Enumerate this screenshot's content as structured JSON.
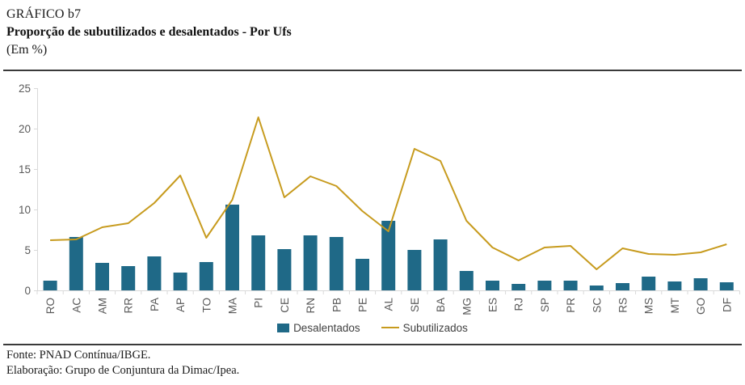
{
  "header": {
    "label": "GRÁFICO b7",
    "title": "Proporção de subutilizados e desalentados - Por Ufs",
    "unit": "(Em %)"
  },
  "colors": {
    "bar": "#1f6987",
    "line": "#c79b1e",
    "axis": "#d9d9d9",
    "tick_label": "#595959",
    "rule": "#3a3a3a"
  },
  "chart_data": {
    "type": "bar",
    "title": "Proporção de subutilizados e desalentados - Por Ufs",
    "subtitle": "(Em %)",
    "xlabel": "",
    "ylabel": "",
    "ylim": [
      0,
      25
    ],
    "yticks": [
      0,
      5,
      10,
      15,
      20,
      25
    ],
    "grid": false,
    "legend_position": "bottom",
    "categories": [
      "RO",
      "AC",
      "AM",
      "RR",
      "PA",
      "AP",
      "TO",
      "MA",
      "PI",
      "CE",
      "RN",
      "PB",
      "PE",
      "AL",
      "SE",
      "BA",
      "MG",
      "ES",
      "RJ",
      "SP",
      "PR",
      "SC",
      "RS",
      "MS",
      "MT",
      "GO",
      "DF"
    ],
    "series": [
      {
        "name": "Desalentados",
        "type": "bar",
        "color": "#1f6987",
        "values": [
          1.2,
          6.6,
          3.4,
          3.0,
          4.2,
          2.2,
          3.5,
          10.6,
          6.8,
          5.1,
          6.8,
          6.6,
          3.9,
          8.6,
          5.0,
          6.3,
          2.4,
          1.2,
          0.8,
          1.2,
          1.2,
          0.6,
          0.9,
          1.7,
          1.1,
          1.5,
          1.0
        ]
      },
      {
        "name": "Subutilizados",
        "type": "line",
        "color": "#c79b1e",
        "values": [
          6.2,
          6.3,
          7.8,
          8.3,
          10.8,
          14.2,
          6.5,
          11.2,
          21.4,
          11.5,
          14.1,
          12.9,
          9.8,
          7.3,
          17.5,
          16.0,
          8.6,
          5.3,
          3.7,
          5.3,
          5.5,
          2.6,
          5.2,
          4.5,
          4.4,
          4.7,
          5.7
        ]
      }
    ]
  },
  "legend": {
    "items": [
      {
        "label": "Desalentados",
        "swatch": "square",
        "color": "#1f6987"
      },
      {
        "label": "Subutilizados",
        "swatch": "line",
        "color": "#c79b1e"
      }
    ]
  },
  "footer": {
    "source": "Fonte: PNAD Contínua/IBGE.",
    "elaboration": "Elaboração: Grupo de Conjuntura da Dimac/Ipea."
  }
}
